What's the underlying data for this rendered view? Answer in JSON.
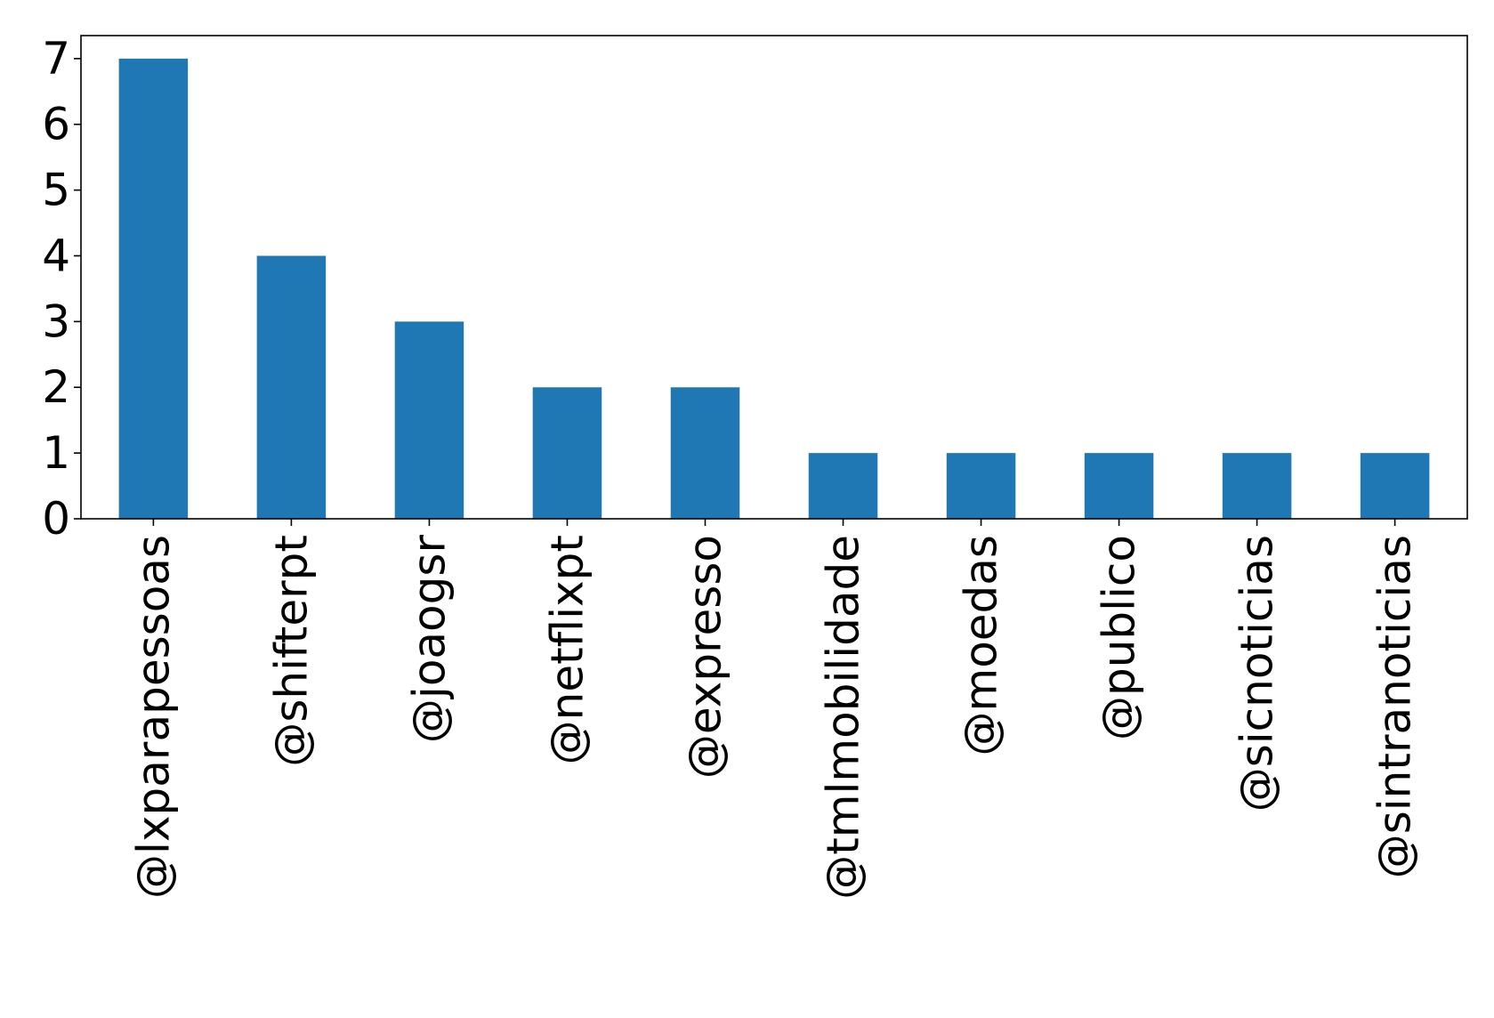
{
  "chart_data": {
    "type": "bar",
    "title": "",
    "xlabel": "",
    "ylabel": "",
    "categories": [
      "@lxparapessoas",
      "@shifterpt",
      "@joaogsr",
      "@netflixpt",
      "@expresso",
      "@tmlmobilidade",
      "@moedas",
      "@publico",
      "@sicnoticias",
      "@sintranoticias"
    ],
    "values": [
      7,
      4,
      3,
      2,
      2,
      1,
      1,
      1,
      1,
      1
    ],
    "ylim": [
      0,
      7.35
    ],
    "yticks": [
      0,
      1,
      2,
      3,
      4,
      5,
      6,
      7
    ],
    "bar_color": "#1f77b4",
    "grid": false,
    "legend": "none"
  }
}
